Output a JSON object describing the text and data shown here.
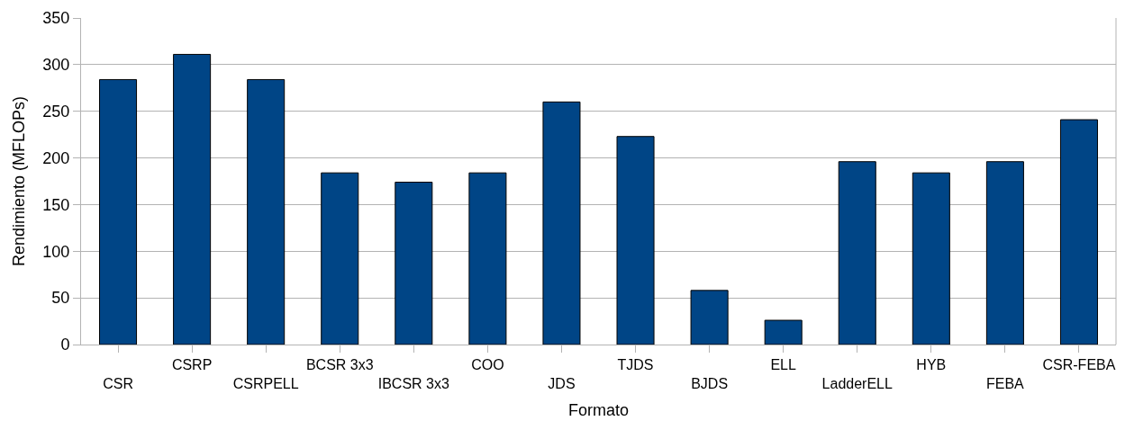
{
  "chart_data": {
    "type": "bar",
    "xlabel": "Formato",
    "ylabel": "Rendimiento (MFLOPs)",
    "categories": [
      "CSR",
      "CSRP",
      "CSRPELL",
      "BCSR 3x3",
      "IBCSR 3x3",
      "COO",
      "JDS",
      "TJDS",
      "BJDS",
      "ELL",
      "LadderELL",
      "HYB",
      "FEBA",
      "CSR-FEBA"
    ],
    "values": [
      284,
      311,
      284,
      184,
      174,
      184,
      260,
      223,
      58,
      26,
      196,
      184,
      196,
      241
    ],
    "color": "#004586",
    "ylim": [
      0,
      350
    ],
    "yticks": [
      0,
      50,
      100,
      150,
      200,
      250,
      300,
      350
    ],
    "grid": "y"
  }
}
